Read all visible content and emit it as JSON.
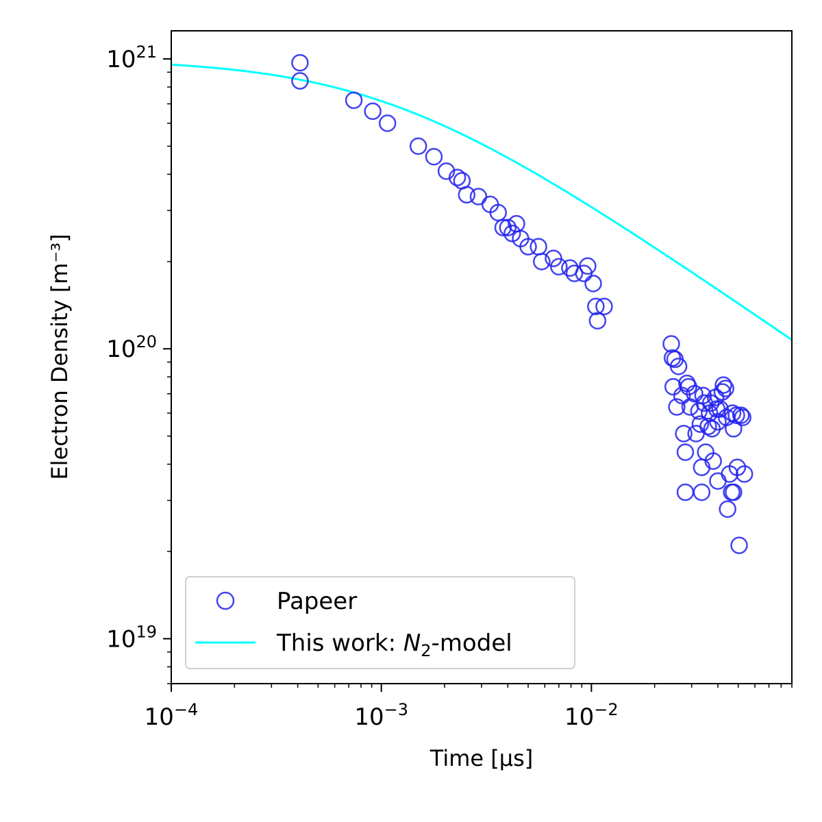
{
  "chart_data": {
    "type": "scatter",
    "xlabel": "Time [μs]",
    "ylabel": "Electron Density [m⁻³]",
    "x_scale": "log",
    "y_scale": "log",
    "xlim": [
      0.0001,
      0.09
    ],
    "ylim": [
      7e+18,
      1.25e+21
    ],
    "x_ticks": [
      {
        "value": 0.0001,
        "base": "10",
        "exp": "−4"
      },
      {
        "value": 0.001,
        "base": "10",
        "exp": "−3"
      },
      {
        "value": 0.01,
        "base": "10",
        "exp": "−2"
      }
    ],
    "y_ticks": [
      {
        "value": 1e+19,
        "base": "10",
        "exp": "19"
      },
      {
        "value": 1e+20,
        "base": "10",
        "exp": "20"
      },
      {
        "value": 1e+21,
        "base": "10",
        "exp": "21"
      }
    ],
    "grid": false,
    "legend_position": "lower-left",
    "colors": {
      "scatter": "#2222ee",
      "line": "#00ffff"
    },
    "series": [
      {
        "name": "Papeer",
        "kind": "scatter",
        "points": [
          [
            0.00041,
            9.7e+20
          ],
          [
            0.00041,
            8.4e+20
          ],
          [
            0.00074,
            7.2e+20
          ],
          [
            0.00091,
            6.6e+20
          ],
          [
            0.00107,
            6e+20
          ],
          [
            0.0015,
            5e+20
          ],
          [
            0.00178,
            4.6e+20
          ],
          [
            0.00204,
            4.1e+20
          ],
          [
            0.0023,
            3.9e+20
          ],
          [
            0.00242,
            3.8e+20
          ],
          [
            0.00255,
            3.4e+20
          ],
          [
            0.0029,
            3.35e+20
          ],
          [
            0.0033,
            3.15e+20
          ],
          [
            0.0036,
            2.95e+20
          ],
          [
            0.0038,
            2.62e+20
          ],
          [
            0.004,
            2.62e+20
          ],
          [
            0.0042,
            2.5e+20
          ],
          [
            0.0044,
            2.7e+20
          ],
          [
            0.0046,
            2.4e+20
          ],
          [
            0.005,
            2.25e+20
          ],
          [
            0.0056,
            2.25e+20
          ],
          [
            0.0058,
            2e+20
          ],
          [
            0.0066,
            2.05e+20
          ],
          [
            0.007,
            1.92e+20
          ],
          [
            0.0079,
            1.9e+20
          ],
          [
            0.0083,
            1.82e+20
          ],
          [
            0.0092,
            1.82e+20
          ],
          [
            0.0096,
            1.93e+20
          ],
          [
            0.0102,
            1.68e+20
          ],
          [
            0.0105,
            1.4e+20
          ],
          [
            0.0107,
            1.25e+20
          ],
          [
            0.0115,
            1.4e+20
          ],
          [
            0.024,
            1.04e+20
          ],
          [
            0.0243,
            9.3e+19
          ],
          [
            0.025,
            9.2e+19
          ],
          [
            0.026,
            8.7e+19
          ],
          [
            0.0245,
            7.4e+19
          ],
          [
            0.0255,
            6.3e+19
          ],
          [
            0.027,
            6.9e+19
          ],
          [
            0.0275,
            5.1e+19
          ],
          [
            0.028,
            4.4e+19
          ],
          [
            0.028,
            3.2e+19
          ],
          [
            0.0285,
            7.6e+19
          ],
          [
            0.029,
            7.4e+19
          ],
          [
            0.0295,
            6.3e+19
          ],
          [
            0.031,
            7e+19
          ],
          [
            0.0315,
            5.1e+19
          ],
          [
            0.0325,
            6.1e+19
          ],
          [
            0.033,
            5.5e+19
          ],
          [
            0.0335,
            3.9e+19
          ],
          [
            0.0335,
            3.2e+19
          ],
          [
            0.034,
            6.9e+19
          ],
          [
            0.0345,
            6.5e+19
          ],
          [
            0.035,
            4.4e+19
          ],
          [
            0.036,
            5.4e+19
          ],
          [
            0.0365,
            6e+19
          ],
          [
            0.037,
            6.5e+19
          ],
          [
            0.0375,
            5.3e+19
          ],
          [
            0.038,
            4.1e+19
          ],
          [
            0.039,
            6.8e+19
          ],
          [
            0.0395,
            6.2e+19
          ],
          [
            0.04,
            5.6e+19
          ],
          [
            0.04,
            3.5e+19
          ],
          [
            0.041,
            6.2e+19
          ],
          [
            0.042,
            7.1e+19
          ],
          [
            0.0425,
            7.5e+19
          ],
          [
            0.0435,
            7.3e+19
          ],
          [
            0.044,
            5.8e+19
          ],
          [
            0.0445,
            2.8e+19
          ],
          [
            0.0455,
            3.7e+19
          ],
          [
            0.0465,
            3.2e+19
          ],
          [
            0.047,
            6e+19
          ],
          [
            0.0475,
            5.3e+19
          ],
          [
            0.0475,
            3.2e+19
          ],
          [
            0.049,
            5.9e+19
          ],
          [
            0.0495,
            3.9e+19
          ],
          [
            0.0505,
            2.1e+19
          ],
          [
            0.0515,
            5.9e+19
          ],
          [
            0.0525,
            5.8e+19
          ],
          [
            0.0535,
            3.7e+19
          ]
        ]
      },
      {
        "name": "This work: N₂-model",
        "kind": "line",
        "model": {
          "n0": 1e+21,
          "t0": 0.00105
        }
      }
    ]
  },
  "legend": {
    "scatter_label": "Papeer",
    "line_label_prefix": "This work: ",
    "line_label_italic": "N",
    "line_label_sub": "2",
    "line_label_suffix": "-model"
  }
}
